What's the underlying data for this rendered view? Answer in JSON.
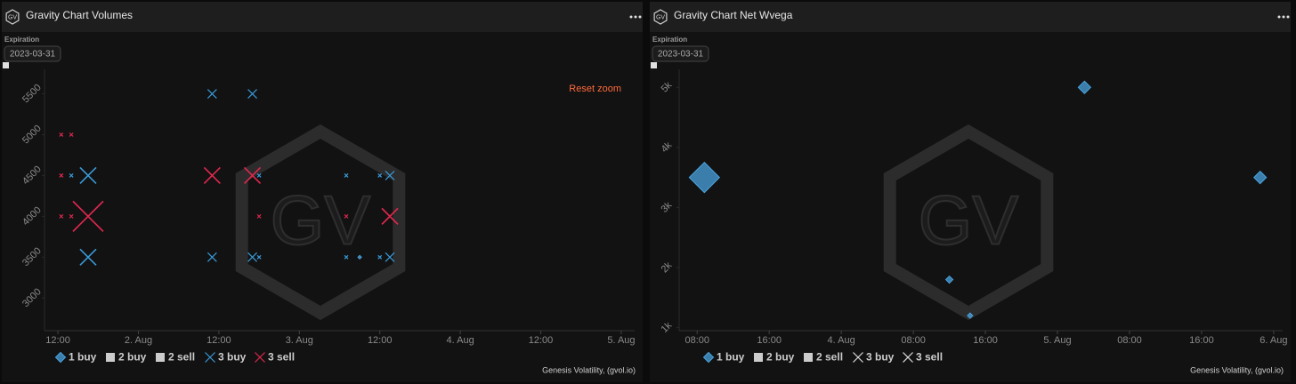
{
  "logo": "GV",
  "chart_data": [
    {
      "type": "scatter",
      "title": "Gravity Chart Volumes",
      "filter_label": "Expiration",
      "filter_value": "2023-03-31",
      "reset_label": "Reset zoom",
      "credit": "Genesis Volatility, (gvol.io)",
      "xlim": [
        10,
        98
      ],
      "xticks": [
        {
          "value": 12,
          "label": "12:00"
        },
        {
          "value": 24,
          "label": "2. Aug"
        },
        {
          "value": 36,
          "label": "12:00"
        },
        {
          "value": 48,
          "label": "3. Aug"
        },
        {
          "value": 60,
          "label": "12:00"
        },
        {
          "value": 72,
          "label": "4. Aug"
        },
        {
          "value": 84,
          "label": "12:00"
        },
        {
          "value": 96,
          "label": "5. Aug"
        }
      ],
      "ylim": [
        2600,
        5800
      ],
      "yticks": [
        3000,
        3500,
        4000,
        4500,
        5000,
        5500
      ],
      "grid": false,
      "series": [
        {
          "name": "1 buy",
          "color": "#4aa3df",
          "marker": "diamond",
          "x": [
            57
          ],
          "values": [
            3500
          ],
          "sizes": [
            2
          ]
        },
        {
          "name": "2 buy",
          "color": "#cccccc",
          "marker": "square",
          "x": [],
          "values": [],
          "sizes": []
        },
        {
          "name": "2 sell",
          "color": "#cccccc",
          "marker": "square",
          "x": [],
          "values": [],
          "sizes": []
        },
        {
          "name": "3 buy",
          "color": "#3a9ad9",
          "marker": "x",
          "x": [
            14,
            16.5,
            16.5,
            35,
            41,
            35,
            41,
            42,
            42,
            55,
            55,
            60,
            61.5,
            60,
            61.5
          ],
          "values": [
            4500,
            4500,
            3500,
            5500,
            5500,
            3500,
            3500,
            4500,
            3500,
            4500,
            3500,
            4500,
            4500,
            3500,
            3500
          ],
          "sizes": [
            2,
            9,
            9,
            5,
            5,
            5,
            5,
            2,
            2,
            2,
            2,
            2,
            5,
            2,
            5
          ]
        },
        {
          "name": "3 sell",
          "color": "#e0284f",
          "marker": "x",
          "x": [
            12.5,
            14,
            12.5,
            12.5,
            14,
            16.5,
            35,
            41,
            42,
            55,
            61.5
          ],
          "values": [
            5000,
            5000,
            4500,
            4000,
            4000,
            4000,
            4500,
            4500,
            4000,
            4000,
            4000
          ],
          "sizes": [
            2,
            2,
            2,
            2,
            2,
            17,
            9,
            9,
            2,
            2,
            9
          ]
        }
      ]
    },
    {
      "type": "scatter",
      "title": "Gravity Chart Net Wvega",
      "filter_label": "Expiration",
      "filter_value": "2023-03-31",
      "credit": "Genesis Volatility, (gvol.io)",
      "xlim": [
        6,
        73
      ],
      "xticks": [
        {
          "value": 8,
          "label": "08:00"
        },
        {
          "value": 16,
          "label": "16:00"
        },
        {
          "value": 24,
          "label": "4. Aug"
        },
        {
          "value": 32,
          "label": "08:00"
        },
        {
          "value": 40,
          "label": "16:00"
        },
        {
          "value": 48,
          "label": "5. Aug"
        },
        {
          "value": 56,
          "label": "08:00"
        },
        {
          "value": 64,
          "label": "16:00"
        },
        {
          "value": 72,
          "label": "6. Aug"
        }
      ],
      "ylim": [
        950,
        5300
      ],
      "yticks": [
        {
          "value": 1000,
          "label": "1k"
        },
        {
          "value": 2000,
          "label": "2k"
        },
        {
          "value": 3000,
          "label": "3k"
        },
        {
          "value": 4000,
          "label": "4k"
        },
        {
          "value": 5000,
          "label": "5k"
        }
      ],
      "grid": false,
      "series": [
        {
          "name": "1 buy",
          "color": "#4aa3df",
          "marker": "diamond",
          "x": [
            8.8,
            51,
            70.5,
            36,
            38.3
          ],
          "values": [
            3500,
            5000,
            3500,
            1800,
            1200
          ],
          "sizes": [
            17,
            7,
            7,
            4,
            3
          ]
        },
        {
          "name": "2 buy",
          "color": "#cccccc",
          "marker": "square",
          "x": [],
          "values": [],
          "sizes": []
        },
        {
          "name": "2 sell",
          "color": "#cccccc",
          "marker": "square",
          "x": [],
          "values": [],
          "sizes": []
        },
        {
          "name": "3 buy",
          "color": "#dddddd",
          "marker": "x",
          "x": [],
          "values": [],
          "sizes": []
        },
        {
          "name": "3 sell",
          "color": "#dddddd",
          "marker": "x",
          "x": [],
          "values": [],
          "sizes": []
        }
      ]
    }
  ]
}
